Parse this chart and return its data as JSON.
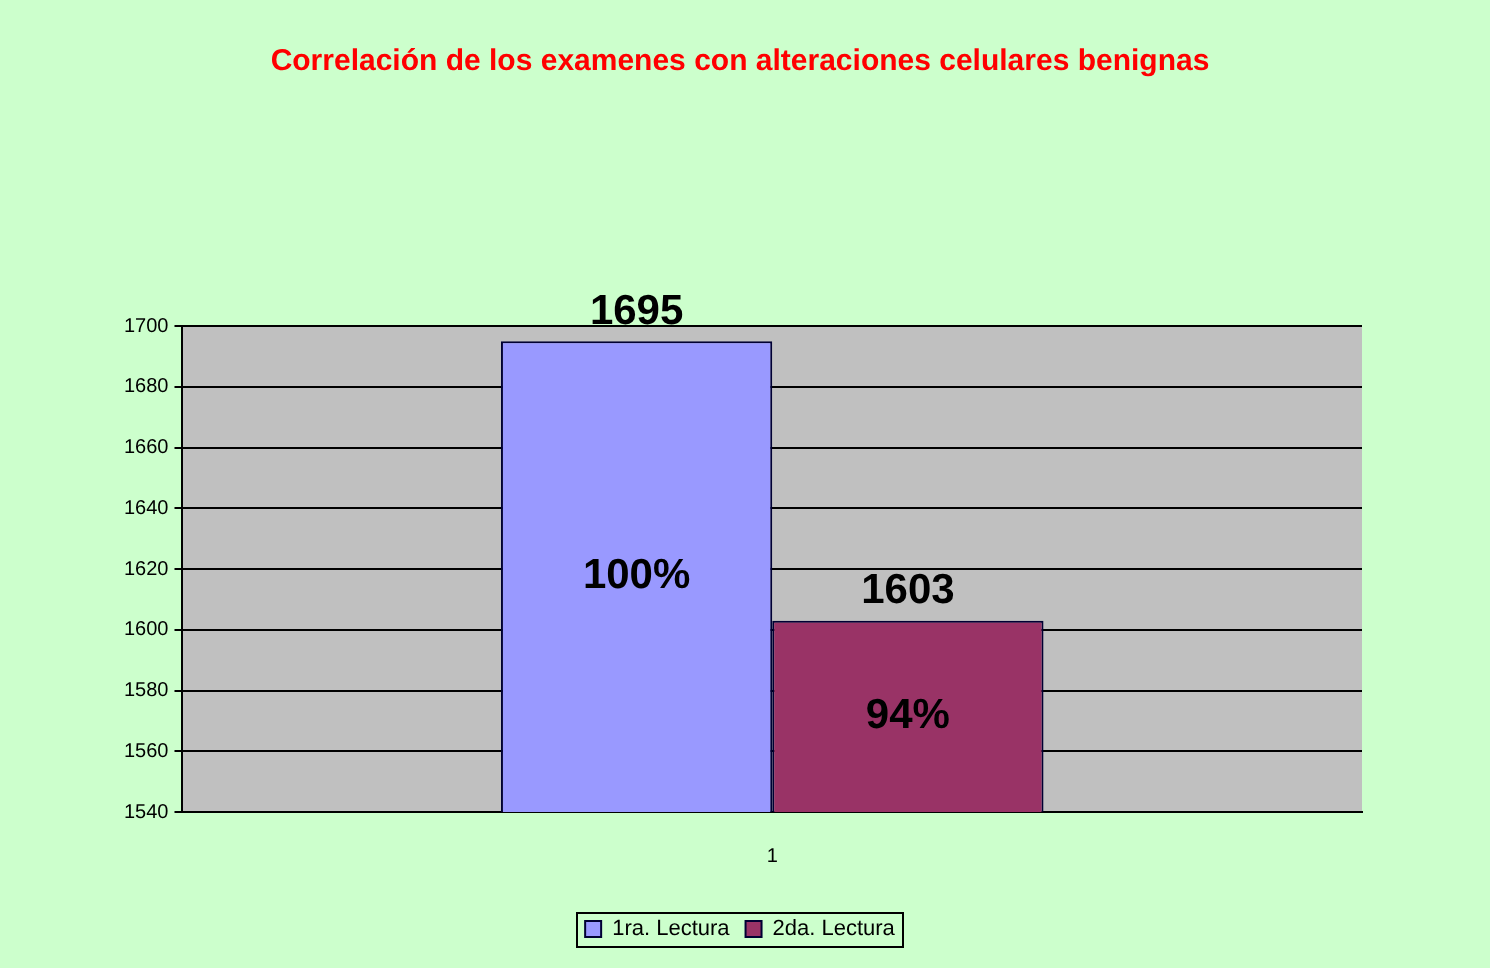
{
  "chart_data": {
    "type": "bar",
    "title": "Correlación de los examenes con alteraciones celulares benignas",
    "categories": [
      "1"
    ],
    "series": [
      {
        "name": "1ra. Lectura",
        "color": "#9999ff",
        "values": [
          1695
        ]
      },
      {
        "name": "2da. Lectura",
        "color": "#993366",
        "values": [
          1603
        ]
      }
    ],
    "annotations": [
      "100%",
      "94%"
    ],
    "ylim": [
      1540,
      1700
    ],
    "yticks": [
      1540,
      1560,
      1580,
      1600,
      1620,
      1640,
      1660,
      1680,
      1700
    ],
    "grid": "y",
    "legend": "bottom",
    "data_labels": true
  }
}
